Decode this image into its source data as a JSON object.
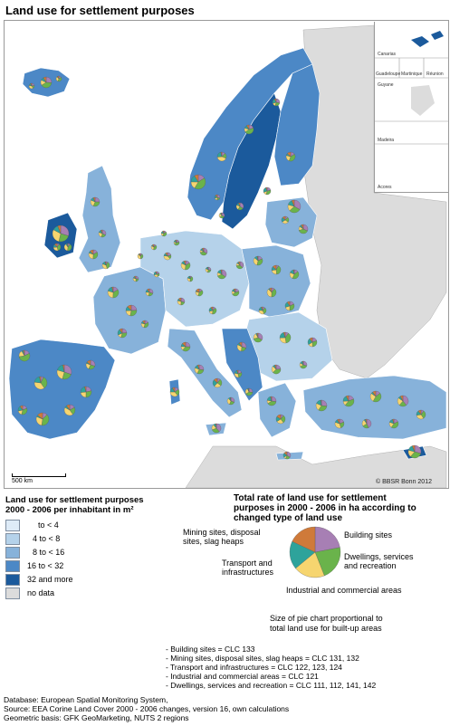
{
  "title": "Land use for settlement purposes",
  "map": {
    "scale_label": "500 km",
    "copyright": "© BBSR Bonn 2012",
    "insets": [
      "Canarias",
      "Guadeloupe",
      "Martinique",
      "Réunion",
      "Guyane",
      "Madeira",
      "Acores"
    ]
  },
  "legend_classes": {
    "heading_line1": "Land use for settlement purposes",
    "heading_line2": "2000 - 2006 per inhabitant in m²",
    "items": [
      {
        "label": "to  <  4",
        "color": "#deebf7"
      },
      {
        "label": "4 to <  8",
        "color": "#b5d2ea"
      },
      {
        "label": "8 to < 16",
        "color": "#87b2da"
      },
      {
        "label": "16 to < 32",
        "color": "#4c88c6"
      },
      {
        "label": "32 and more",
        "color": "#1b5a9c"
      },
      {
        "label": "no data",
        "color": "#dcdcdc"
      }
    ]
  },
  "legend_pie": {
    "heading_line1": "Total rate of land use for settlement",
    "heading_line2": "purposes in 2000 - 2006 in ha according to",
    "heading_line3": "changed type of land use",
    "categories": [
      {
        "label_line1": "Building sites",
        "label_line2": "",
        "color": "#a77fb4"
      },
      {
        "label_line1": "Dwellings, services",
        "label_line2": "and recreation",
        "color": "#6ab34b"
      },
      {
        "label_line1": "Industrial and commercial areas",
        "label_line2": "",
        "color": "#f6d56f"
      },
      {
        "label_line1": "Transport and",
        "label_line2": "infrastructures",
        "color": "#2ea39b"
      },
      {
        "label_line1": "Mining sites, disposal",
        "label_line2": "sites, slag heaps",
        "color": "#cf7a3a"
      }
    ],
    "size_note_line1": "Size of pie chart proportional to",
    "size_note_line2": "total land use for built-up areas"
  },
  "clc_codes": [
    "- Building sites = CLC 133",
    "- Mining sites, disposal sites, slag heaps = CLC 131, 132",
    "- Transport and infrastructures = CLC 122, 123, 124",
    "- Industrial and commercial areas = CLC 121",
    "- Dwellings, services and recreation = CLC 111, 112, 141, 142"
  ],
  "source": [
    "Database: European Spatial Monitoring System,",
    "Source: EEA Corine Land Cover 2000 - 2006 changes, version 16, own calculations",
    "Geometric basis: GFK GeoMarketing, NUTS 2 regions"
  ]
}
